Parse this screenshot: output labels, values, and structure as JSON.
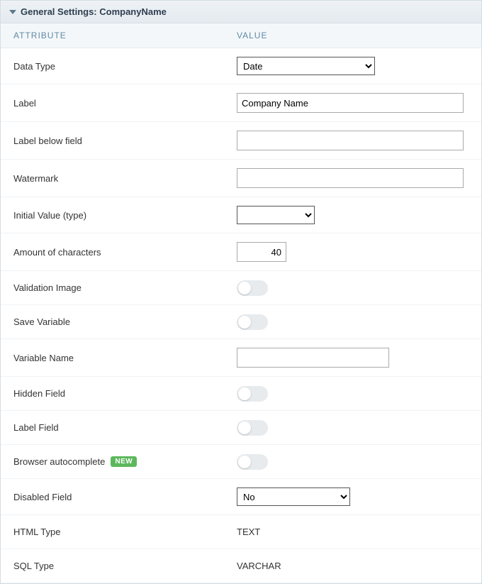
{
  "panel": {
    "title": "General Settings: CompanyName"
  },
  "columns": {
    "attribute": "ATTRIBUTE",
    "value": "VALUE"
  },
  "badge": {
    "new": "NEW"
  },
  "rows": {
    "dataType": {
      "label": "Data Type",
      "value": "Date"
    },
    "label": {
      "label": "Label",
      "value": "Company Name"
    },
    "labelBelow": {
      "label": "Label below field",
      "value": ""
    },
    "watermark": {
      "label": "Watermark",
      "value": ""
    },
    "initialValue": {
      "label": "Initial Value (type)",
      "value": ""
    },
    "amountChars": {
      "label": "Amount of characters",
      "value": "40"
    },
    "validationImg": {
      "label": "Validation Image",
      "value": false
    },
    "saveVariable": {
      "label": "Save Variable",
      "value": false
    },
    "variableName": {
      "label": "Variable Name",
      "value": ""
    },
    "hiddenField": {
      "label": "Hidden Field",
      "value": false
    },
    "labelField": {
      "label": "Label Field",
      "value": false
    },
    "browserAuto": {
      "label": "Browser autocomplete",
      "value": false,
      "badge": true
    },
    "disabledField": {
      "label": "Disabled Field",
      "value": "No"
    },
    "htmlType": {
      "label": "HTML Type",
      "value": "TEXT"
    },
    "sqlType": {
      "label": "SQL Type",
      "value": "VARCHAR"
    }
  },
  "colors": {
    "headerText": "#5e8aa8",
    "badgeBg": "#5cb85c",
    "toggleBg": "#e7ebee"
  }
}
